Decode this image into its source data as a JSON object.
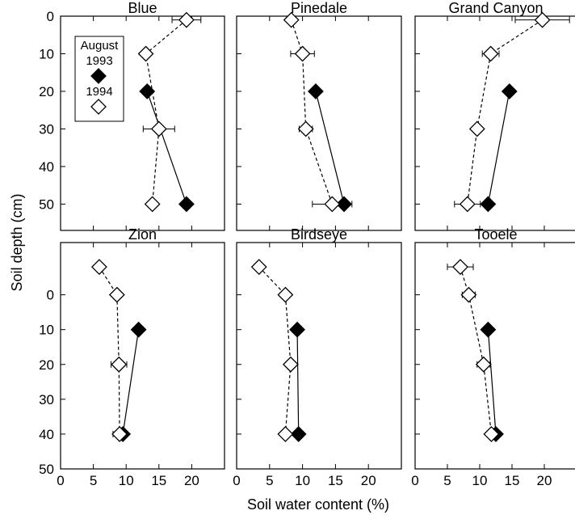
{
  "chart_data": {
    "type": "scatter",
    "xlabel": "Soil water content (%)",
    "ylabel": "Soil depth (cm)",
    "xlim": [
      0,
      25
    ],
    "x_ticks": [
      0,
      5,
      10,
      15,
      20
    ],
    "legend": {
      "title": "August",
      "entries": [
        "1993",
        "1994"
      ],
      "placement": "top-left of Blue panel"
    },
    "panels": [
      {
        "title": "Blue",
        "ylim": [
          0,
          57
        ],
        "y_ticks": [
          0,
          10,
          20,
          30,
          40,
          50
        ],
        "series": [
          {
            "name": "1993",
            "marker": "filled-diamond",
            "line": "solid",
            "points": [
              {
                "x": 13.2,
                "y": 20
              },
              {
                "x": 19.2,
                "y": 50
              }
            ]
          },
          {
            "name": "1994",
            "marker": "open-diamond",
            "line": "dashed",
            "points": [
              {
                "x": 19.2,
                "y": 1,
                "xerr": 2.2
              },
              {
                "x": 13.0,
                "y": 10
              },
              {
                "x": 15.0,
                "y": 30,
                "xerr": 2.4
              },
              {
                "x": 14.0,
                "y": 50
              }
            ]
          }
        ]
      },
      {
        "title": "Pinedale",
        "ylim": [
          0,
          57
        ],
        "y_ticks": [
          0,
          10,
          20,
          30,
          40,
          50
        ],
        "series": [
          {
            "name": "1993",
            "marker": "filled-diamond",
            "line": "solid",
            "points": [
              {
                "x": 12.0,
                "y": 20
              },
              {
                "x": 16.3,
                "y": 50
              }
            ]
          },
          {
            "name": "1994",
            "marker": "open-diamond",
            "line": "dashed",
            "points": [
              {
                "x": 8.3,
                "y": 1
              },
              {
                "x": 10.0,
                "y": 10,
                "xerr": 1.8
              },
              {
                "x": 10.5,
                "y": 30,
                "xerr": 1.0
              },
              {
                "x": 14.5,
                "y": 50,
                "xerr": 3.0
              }
            ]
          }
        ]
      },
      {
        "title": "Grand Canyon",
        "ylim": [
          0,
          57
        ],
        "y_ticks": [
          0,
          10,
          20,
          30,
          40,
          50
        ],
        "series": [
          {
            "name": "1993",
            "marker": "filled-diamond",
            "line": "solid",
            "points": [
              {
                "x": 14.6,
                "y": 20
              },
              {
                "x": 11.3,
                "y": 50
              }
            ]
          },
          {
            "name": "1994",
            "marker": "open-diamond",
            "line": "dashed",
            "points": [
              {
                "x": 19.7,
                "y": 1,
                "xerr": 4.2
              },
              {
                "x": 11.7,
                "y": 10,
                "xerr": 1.3
              },
              {
                "x": 9.6,
                "y": 30
              },
              {
                "x": 8.1,
                "y": 50,
                "xerr": 2.0
              }
            ]
          }
        ]
      },
      {
        "title": "Zion",
        "ylim": [
          -15,
          50
        ],
        "y_ticks": [
          0,
          10,
          20,
          30,
          40,
          50
        ],
        "series": [
          {
            "name": "1993",
            "marker": "filled-diamond",
            "line": "solid",
            "points": [
              {
                "x": 11.9,
                "y": 10
              },
              {
                "x": 9.5,
                "y": 40
              }
            ]
          },
          {
            "name": "1994",
            "marker": "open-diamond",
            "line": "dashed",
            "points": [
              {
                "x": 5.9,
                "y": -8
              },
              {
                "x": 8.6,
                "y": 0
              },
              {
                "x": 8.9,
                "y": 20,
                "xerr": 1.2
              },
              {
                "x": 9.0,
                "y": 40,
                "xerr": 1.0
              }
            ]
          }
        ]
      },
      {
        "title": "Birdseye",
        "ylim": [
          -15,
          50
        ],
        "y_ticks": [
          0,
          10,
          20,
          30,
          40,
          50
        ],
        "series": [
          {
            "name": "1993",
            "marker": "filled-diamond",
            "line": "solid",
            "points": [
              {
                "x": 9.2,
                "y": 10
              },
              {
                "x": 9.4,
                "y": 40
              }
            ]
          },
          {
            "name": "1994",
            "marker": "open-diamond",
            "line": "dashed",
            "points": [
              {
                "x": 3.4,
                "y": -8
              },
              {
                "x": 7.4,
                "y": 0
              },
              {
                "x": 8.2,
                "y": 20
              },
              {
                "x": 7.4,
                "y": 40
              }
            ]
          }
        ]
      },
      {
        "title": "Tooele",
        "ylim": [
          -15,
          50
        ],
        "y_ticks": [
          0,
          10,
          20,
          30,
          40,
          50
        ],
        "series": [
          {
            "name": "1993",
            "marker": "filled-diamond",
            "line": "solid",
            "points": [
              {
                "x": 11.3,
                "y": 10
              },
              {
                "x": 12.5,
                "y": 40
              }
            ]
          },
          {
            "name": "1994",
            "marker": "open-diamond",
            "line": "dashed",
            "points": [
              {
                "x": 7.0,
                "y": -8,
                "xerr": 2.0
              },
              {
                "x": 8.3,
                "y": 0,
                "xerr": 1.0
              },
              {
                "x": 10.6,
                "y": 20,
                "xerr": 1.0
              },
              {
                "x": 11.8,
                "y": 40
              }
            ]
          }
        ]
      }
    ]
  }
}
